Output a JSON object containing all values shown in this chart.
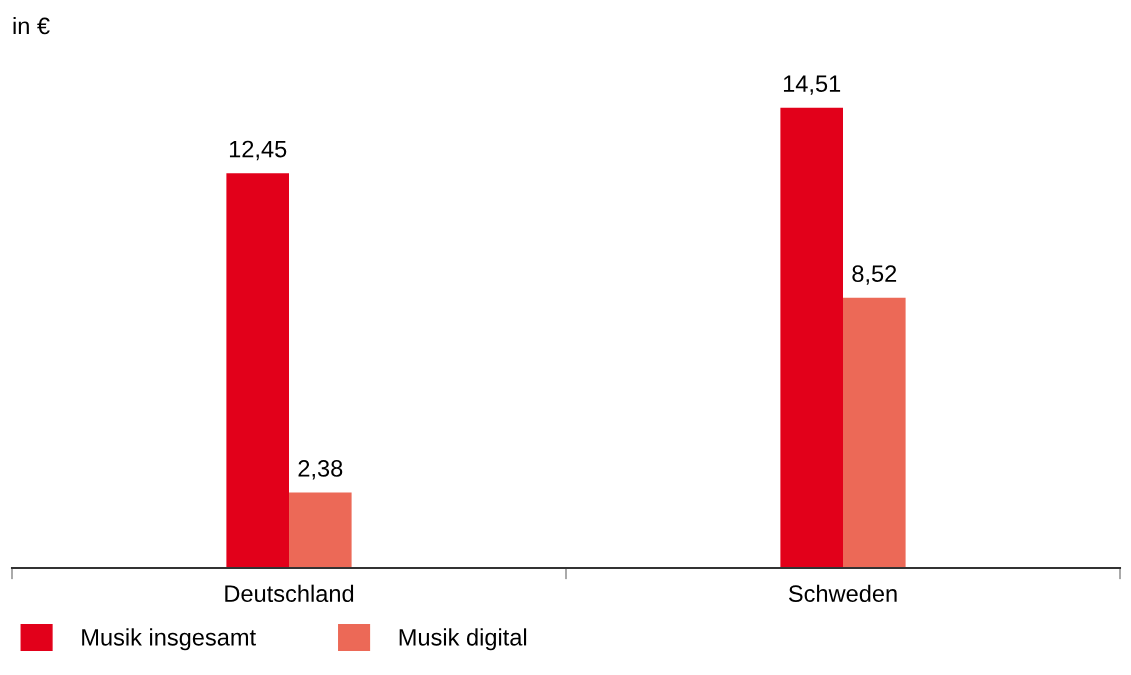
{
  "chart_data": {
    "type": "bar",
    "ylabel": "in €",
    "categories": [
      "Deutschland",
      "Schweden"
    ],
    "series": [
      {
        "name": "Musik insgesamt",
        "color": "#e2001a",
        "values": [
          12.45,
          14.51
        ],
        "value_labels": [
          "12,45",
          "14,51"
        ]
      },
      {
        "name": "Musik digital",
        "color": "#ec6957",
        "values": [
          2.38,
          8.52
        ],
        "value_labels": [
          "2,38",
          "8,52"
        ]
      }
    ],
    "legend": "bottom left",
    "grid": false
  }
}
